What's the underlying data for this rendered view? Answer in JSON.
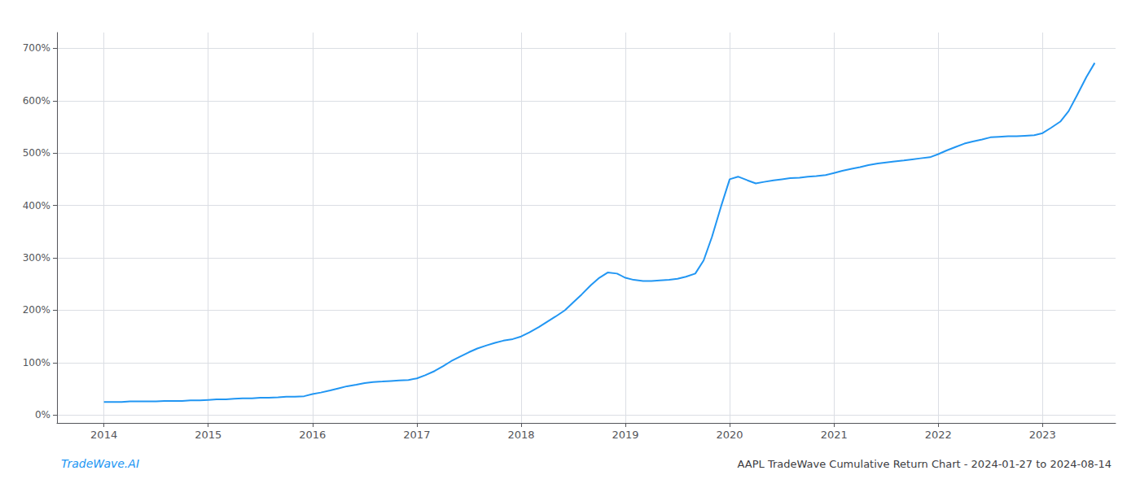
{
  "chart_data": {
    "type": "line",
    "title": "AAPL TradeWave Cumulative Return Chart - 2024-01-27 to 2024-08-14",
    "annotations": [
      "TradeWave.AI"
    ],
    "color": "#2196F3",
    "grid": true,
    "x": [
      2014.0,
      2014.08,
      2014.17,
      2014.25,
      2014.33,
      2014.42,
      2014.5,
      2014.58,
      2014.67,
      2014.75,
      2014.83,
      2014.92,
      2015.0,
      2015.08,
      2015.17,
      2015.25,
      2015.33,
      2015.42,
      2015.5,
      2015.58,
      2015.67,
      2015.75,
      2015.83,
      2015.92,
      2016.0,
      2016.08,
      2016.17,
      2016.25,
      2016.33,
      2016.42,
      2016.5,
      2016.58,
      2016.67,
      2016.75,
      2016.83,
      2016.92,
      2017.0,
      2017.08,
      2017.17,
      2017.25,
      2017.33,
      2017.42,
      2017.5,
      2017.58,
      2017.67,
      2017.75,
      2017.83,
      2017.92,
      2018.0,
      2018.08,
      2018.17,
      2018.25,
      2018.33,
      2018.42,
      2018.5,
      2018.58,
      2018.67,
      2018.75,
      2018.83,
      2018.92,
      2019.0,
      2019.08,
      2019.17,
      2019.25,
      2019.33,
      2019.42,
      2019.5,
      2019.58,
      2019.67,
      2019.75,
      2019.83,
      2019.92,
      2020.0,
      2020.08,
      2020.17,
      2020.25,
      2020.33,
      2020.42,
      2020.5,
      2020.58,
      2020.67,
      2020.75,
      2020.83,
      2020.92,
      2021.0,
      2021.08,
      2021.17,
      2021.25,
      2021.33,
      2021.42,
      2021.5,
      2021.58,
      2021.67,
      2021.75,
      2021.83,
      2021.92,
      2022.0,
      2022.08,
      2022.17,
      2022.25,
      2022.33,
      2022.42,
      2022.5,
      2022.58,
      2022.67,
      2022.75,
      2022.83,
      2022.92,
      2023.0,
      2023.08,
      2023.17,
      2023.25,
      2023.33,
      2023.42,
      2023.5
    ],
    "values": [
      25,
      25,
      25,
      26,
      26,
      26,
      26,
      27,
      27,
      27,
      28,
      28,
      29,
      30,
      30,
      31,
      32,
      32,
      33,
      33,
      34,
      35,
      35,
      36,
      40,
      43,
      47,
      51,
      55,
      58,
      61,
      63,
      64,
      65,
      66,
      67,
      70,
      76,
      84,
      93,
      103,
      112,
      120,
      127,
      133,
      138,
      142,
      145,
      150,
      158,
      168,
      178,
      188,
      200,
      215,
      230,
      248,
      262,
      272,
      270,
      262,
      258,
      256,
      256,
      257,
      258,
      260,
      264,
      270,
      295,
      340,
      400,
      450,
      455,
      448,
      442,
      445,
      448,
      450,
      452,
      453,
      455,
      456,
      458,
      462,
      466,
      470,
      473,
      477,
      480,
      482,
      484,
      486,
      488,
      490,
      492,
      498,
      505,
      512,
      518,
      522,
      526,
      530,
      531,
      532,
      532,
      533,
      534,
      538,
      548,
      560,
      580,
      610,
      645,
      672
    ],
    "xlim": [
      2013.55,
      2023.7
    ],
    "xticks": [
      2014,
      2015,
      2016,
      2017,
      2018,
      2019,
      2020,
      2021,
      2022,
      2023
    ],
    "ylim": [
      -15,
      730
    ],
    "yticks": [
      {
        "value": 0,
        "label": "0%"
      },
      {
        "value": 100,
        "label": "100%"
      },
      {
        "value": 200,
        "label": "200%"
      },
      {
        "value": 300,
        "label": "300%"
      },
      {
        "value": 400,
        "label": "400%"
      },
      {
        "value": 500,
        "label": "500%"
      },
      {
        "value": 600,
        "label": "600%"
      },
      {
        "value": 700,
        "label": "700%"
      }
    ]
  }
}
